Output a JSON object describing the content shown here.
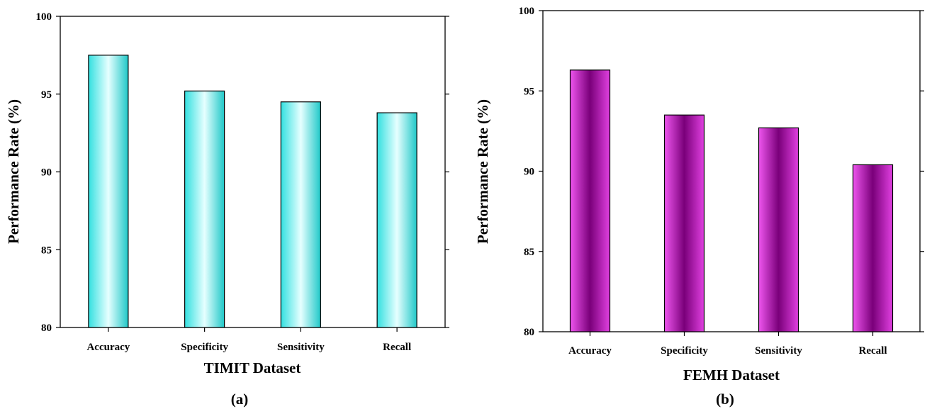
{
  "chart_data": [
    {
      "type": "bar",
      "panel_label": "(a)",
      "xlabel": "TIMIT Dataset",
      "ylabel": "Performance Rate (%)",
      "categories": [
        "Accuracy",
        "Specificity",
        "Sensitivity",
        "Recall"
      ],
      "values": [
        97.5,
        95.2,
        94.5,
        93.8
      ],
      "ylim": [
        80,
        100
      ],
      "yticks": [
        "80",
        "85",
        "90",
        "95",
        "100"
      ],
      "grid": false,
      "bar_color": "#33e0e0",
      "bar_color_dark": "#00a8a8"
    },
    {
      "type": "bar",
      "panel_label": "(b)",
      "xlabel": "FEMH Dataset",
      "ylabel": "Performance Rate (%)",
      "categories": [
        "Accuracy",
        "Specificity",
        "Sensitivity",
        "Recall"
      ],
      "values": [
        96.3,
        93.5,
        92.7,
        90.4
      ],
      "ylim": [
        80,
        100
      ],
      "yticks": [
        "80",
        "85",
        "90",
        "95",
        "100"
      ],
      "grid": false,
      "bar_color": "#e84ee8",
      "bar_color_dark": "#800080"
    }
  ]
}
